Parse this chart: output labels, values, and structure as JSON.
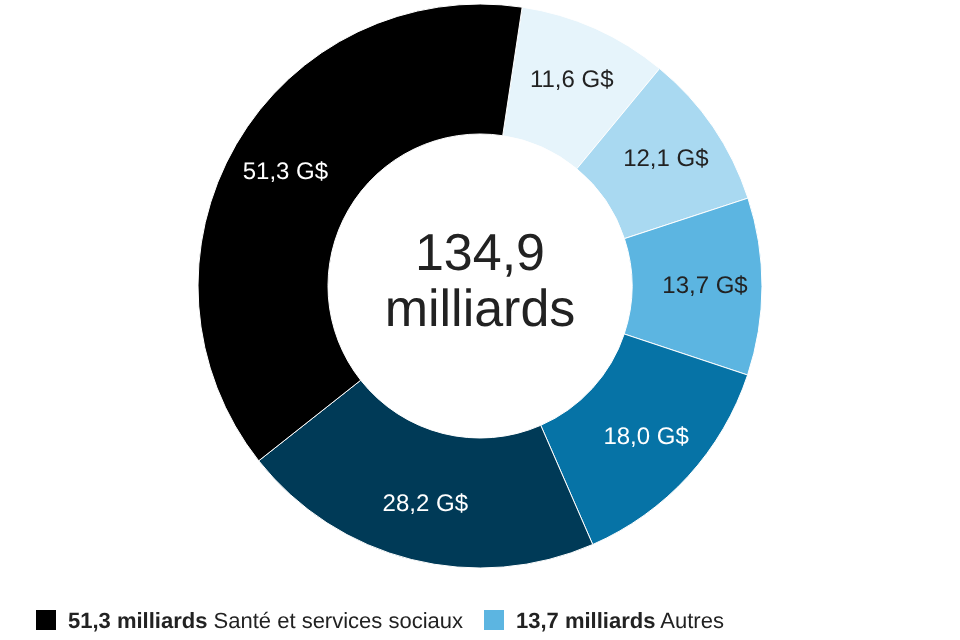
{
  "chart_data": {
    "type": "donut",
    "categories": [
      null,
      null,
      "13,7 milliards Autres",
      null,
      null,
      "51,3 milliards Santé et services sociaux"
    ],
    "values": [
      11.6,
      12.1,
      13.7,
      18.0,
      28.2,
      51.3
    ],
    "value_labels": [
      "11,6 G$",
      "12,1 G$",
      "13,7 G$",
      "18,0 G$",
      "28,2 G$",
      "51,3 G$"
    ],
    "colors": [
      "#e6f4fb",
      "#a9d9f1",
      "#5cb5e1",
      "#0673a6",
      "#003a57",
      "#000000"
    ],
    "annotations": [
      "134,9 milliards"
    ],
    "legend": "bottom"
  }
}
